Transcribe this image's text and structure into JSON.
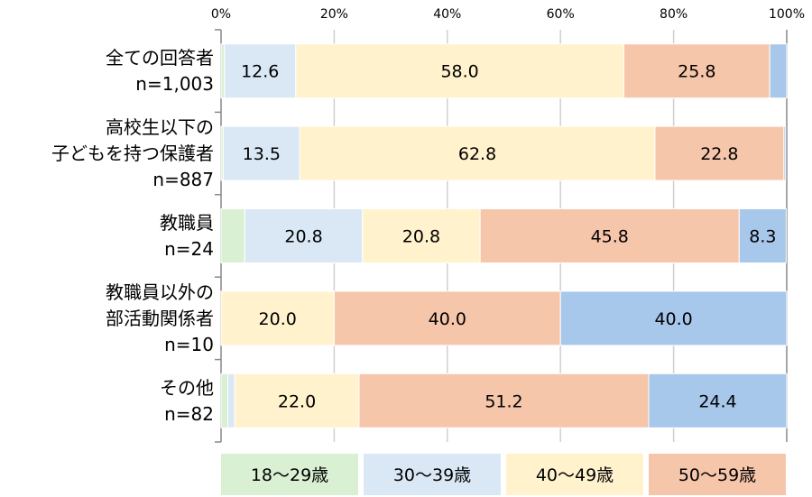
{
  "chart_data": {
    "type": "bar",
    "orientation": "horizontal",
    "stacked": true,
    "xlim": [
      0,
      100
    ],
    "x_ticks": [
      "0%",
      "20%",
      "40%",
      "60%",
      "80%",
      "100%"
    ],
    "grid": true,
    "legend_placement": "bottom",
    "categories": [
      [
        "全ての回答者",
        "n=1,003"
      ],
      [
        "高校生以下の",
        "子どもを持つ保護者",
        "n=887"
      ],
      [
        "教職員",
        "n=24"
      ],
      [
        "教職員以外の",
        "部活動関係者",
        "n=10"
      ],
      [
        "その他",
        "n=82"
      ]
    ],
    "series": [
      {
        "name": "18～29歳",
        "color": "#d9f0d3",
        "values": [
          0.6,
          0.4,
          4.2,
          0,
          1.2
        ],
        "labels": [
          "",
          "",
          "",
          "",
          ""
        ]
      },
      {
        "name": "30～39歳",
        "color": "#dae8f6",
        "values": [
          12.6,
          13.5,
          20.8,
          0,
          1.2
        ],
        "labels": [
          "12.6",
          "13.5",
          "20.8",
          "",
          ""
        ]
      },
      {
        "name": "40～49歳",
        "color": "#fff2cc",
        "values": [
          58.0,
          62.8,
          20.8,
          20.0,
          22.0
        ],
        "labels": [
          "58.0",
          "62.8",
          "20.8",
          "20.0",
          "22.0"
        ]
      },
      {
        "name": "50～59歳",
        "color": "#f6c6ab",
        "values": [
          25.8,
          22.8,
          45.8,
          40.0,
          51.2
        ],
        "labels": [
          "25.8",
          "22.8",
          "45.8",
          "40.0",
          "51.2"
        ]
      },
      {
        "color": "#a7c7eb",
        "values": [
          3.0,
          0.3,
          8.3,
          40.0,
          24.4
        ],
        "labels": [
          "",
          "",
          "8.3",
          "40.0",
          "24.4"
        ]
      }
    ]
  }
}
